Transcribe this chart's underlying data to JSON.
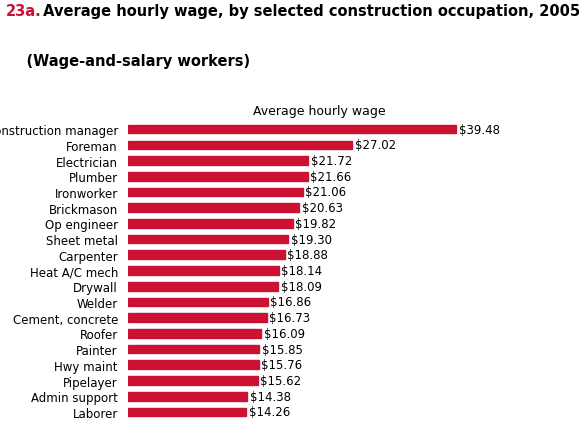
{
  "title_prefix": "23a.",
  "title_text": " Average hourly wage, by selected construction occupation, 2005",
  "title_subtitle": "    (Wage-and-salary workers)",
  "xlabel": "Average hourly wage",
  "categories": [
    "Laborer",
    "Admin support",
    "Pipelayer",
    "Hwy maint",
    "Painter",
    "Roofer",
    "Cement, concrete",
    "Welder",
    "Drywall",
    "Heat A/C mech",
    "Carpenter",
    "Sheet metal",
    "Op engineer",
    "Brickmason",
    "Ironworker",
    "Plumber",
    "Electrician",
    "Foreman",
    "Construction manager"
  ],
  "values": [
    14.26,
    14.38,
    15.62,
    15.76,
    15.85,
    16.09,
    16.73,
    16.86,
    18.09,
    18.14,
    18.88,
    19.3,
    19.82,
    20.63,
    21.06,
    21.66,
    21.72,
    27.02,
    39.48
  ],
  "labels": [
    "$14.26",
    "$14.38",
    "$15.62",
    "$15.76",
    "$15.85",
    "$16.09",
    "$16.73",
    "$16.86",
    "$18.09",
    "$18.14",
    "$18.88",
    "$19.30",
    "$19.82",
    "$20.63",
    "$21.06",
    "$21.66",
    "$21.72",
    "$27.02",
    "$39.48"
  ],
  "bar_color": "#cc1133",
  "background_color": "#ffffff",
  "title_color_prefix": "#cc1133",
  "title_color_main": "#000000",
  "label_fontsize": 8.5,
  "title_fontsize": 10.5,
  "subtitle_fontsize": 10.5,
  "xlabel_fontsize": 9,
  "bar_height": 0.55,
  "xlim": [
    0,
    46
  ]
}
